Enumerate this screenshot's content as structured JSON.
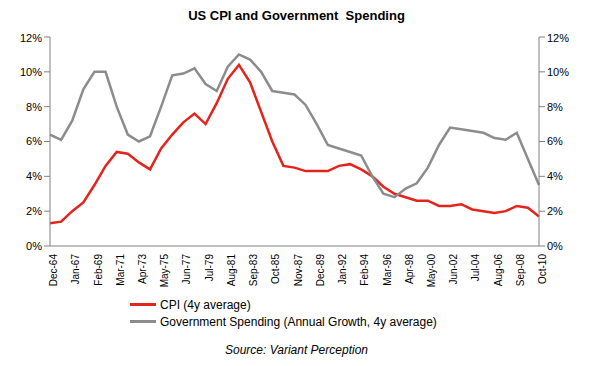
{
  "chart_data": {
    "type": "line",
    "title": "US CPI and Government  Spending",
    "source": "Source: Variant Perception",
    "categories": [
      "Dec-64",
      null,
      "Jan-67",
      null,
      "Feb-69",
      null,
      "Mar-71",
      null,
      "Apr-73",
      null,
      "May-75",
      null,
      "Jun-77",
      null,
      "Jul-79",
      null,
      "Aug-81",
      null,
      "Sep-83",
      null,
      "Oct-85",
      null,
      "Nov-87",
      null,
      "Dec-89",
      null,
      "Jan-92",
      null,
      "Feb-94",
      null,
      "Mar-96",
      null,
      "Apr-98",
      null,
      "May-00",
      null,
      "Jun-02",
      null,
      "Jul-04",
      null,
      "Aug-06",
      null,
      "Sep-08",
      null,
      "Oct-10"
    ],
    "series": [
      {
        "name": "CPI (4y average)",
        "color": "#e3231c",
        "values": [
          1.3,
          1.4,
          2.0,
          2.5,
          3.5,
          4.6,
          5.4,
          5.3,
          4.8,
          4.4,
          5.6,
          6.4,
          7.1,
          7.6,
          7.0,
          8.2,
          9.6,
          10.4,
          9.4,
          7.7,
          6.0,
          4.6,
          4.5,
          4.3,
          4.3,
          4.3,
          4.6,
          4.7,
          4.4,
          4.0,
          3.4,
          3.0,
          2.8,
          2.6,
          2.6,
          2.3,
          2.3,
          2.4,
          2.1,
          2.0,
          1.9,
          2.0,
          2.3,
          2.2,
          1.7
        ]
      },
      {
        "name": "Government Spending (Annual Growth, 4y average)",
        "color": "#8c8c8c",
        "axis": "y2",
        "values": [
          6.4,
          6.1,
          7.2,
          9.0,
          10.0,
          10.0,
          8.0,
          6.4,
          6.0,
          6.3,
          8.0,
          9.8,
          9.9,
          10.2,
          9.3,
          8.9,
          10.3,
          11.0,
          10.7,
          10.0,
          8.9,
          8.8,
          8.7,
          8.1,
          7.0,
          5.8,
          5.6,
          5.4,
          5.2,
          4.0,
          3.0,
          2.8,
          3.3,
          3.6,
          4.5,
          5.8,
          6.8,
          6.7,
          6.6,
          6.5,
          6.2,
          6.1,
          6.5,
          5.0,
          3.5
        ]
      }
    ],
    "ylim": [
      0,
      12
    ],
    "yticks": [
      {
        "value": 0,
        "label": "0%"
      },
      {
        "value": 2,
        "label": "2%"
      },
      {
        "value": 4,
        "label": "4%"
      },
      {
        "value": 6,
        "label": "6%"
      },
      {
        "value": 8,
        "label": "8%"
      },
      {
        "value": 10,
        "label": "10%"
      },
      {
        "value": 12,
        "label": "12%"
      }
    ],
    "y2lim": [
      0,
      12
    ],
    "y2ticks": [
      {
        "value": 0,
        "label": "0%"
      },
      {
        "value": 2,
        "label": "2%"
      },
      {
        "value": 4,
        "label": "4%"
      },
      {
        "value": 6,
        "label": "6%"
      },
      {
        "value": 8,
        "label": "8%"
      },
      {
        "value": 10,
        "label": "10%"
      },
      {
        "value": 12,
        "label": "12%"
      }
    ],
    "grid": false,
    "legend": "bottom"
  }
}
